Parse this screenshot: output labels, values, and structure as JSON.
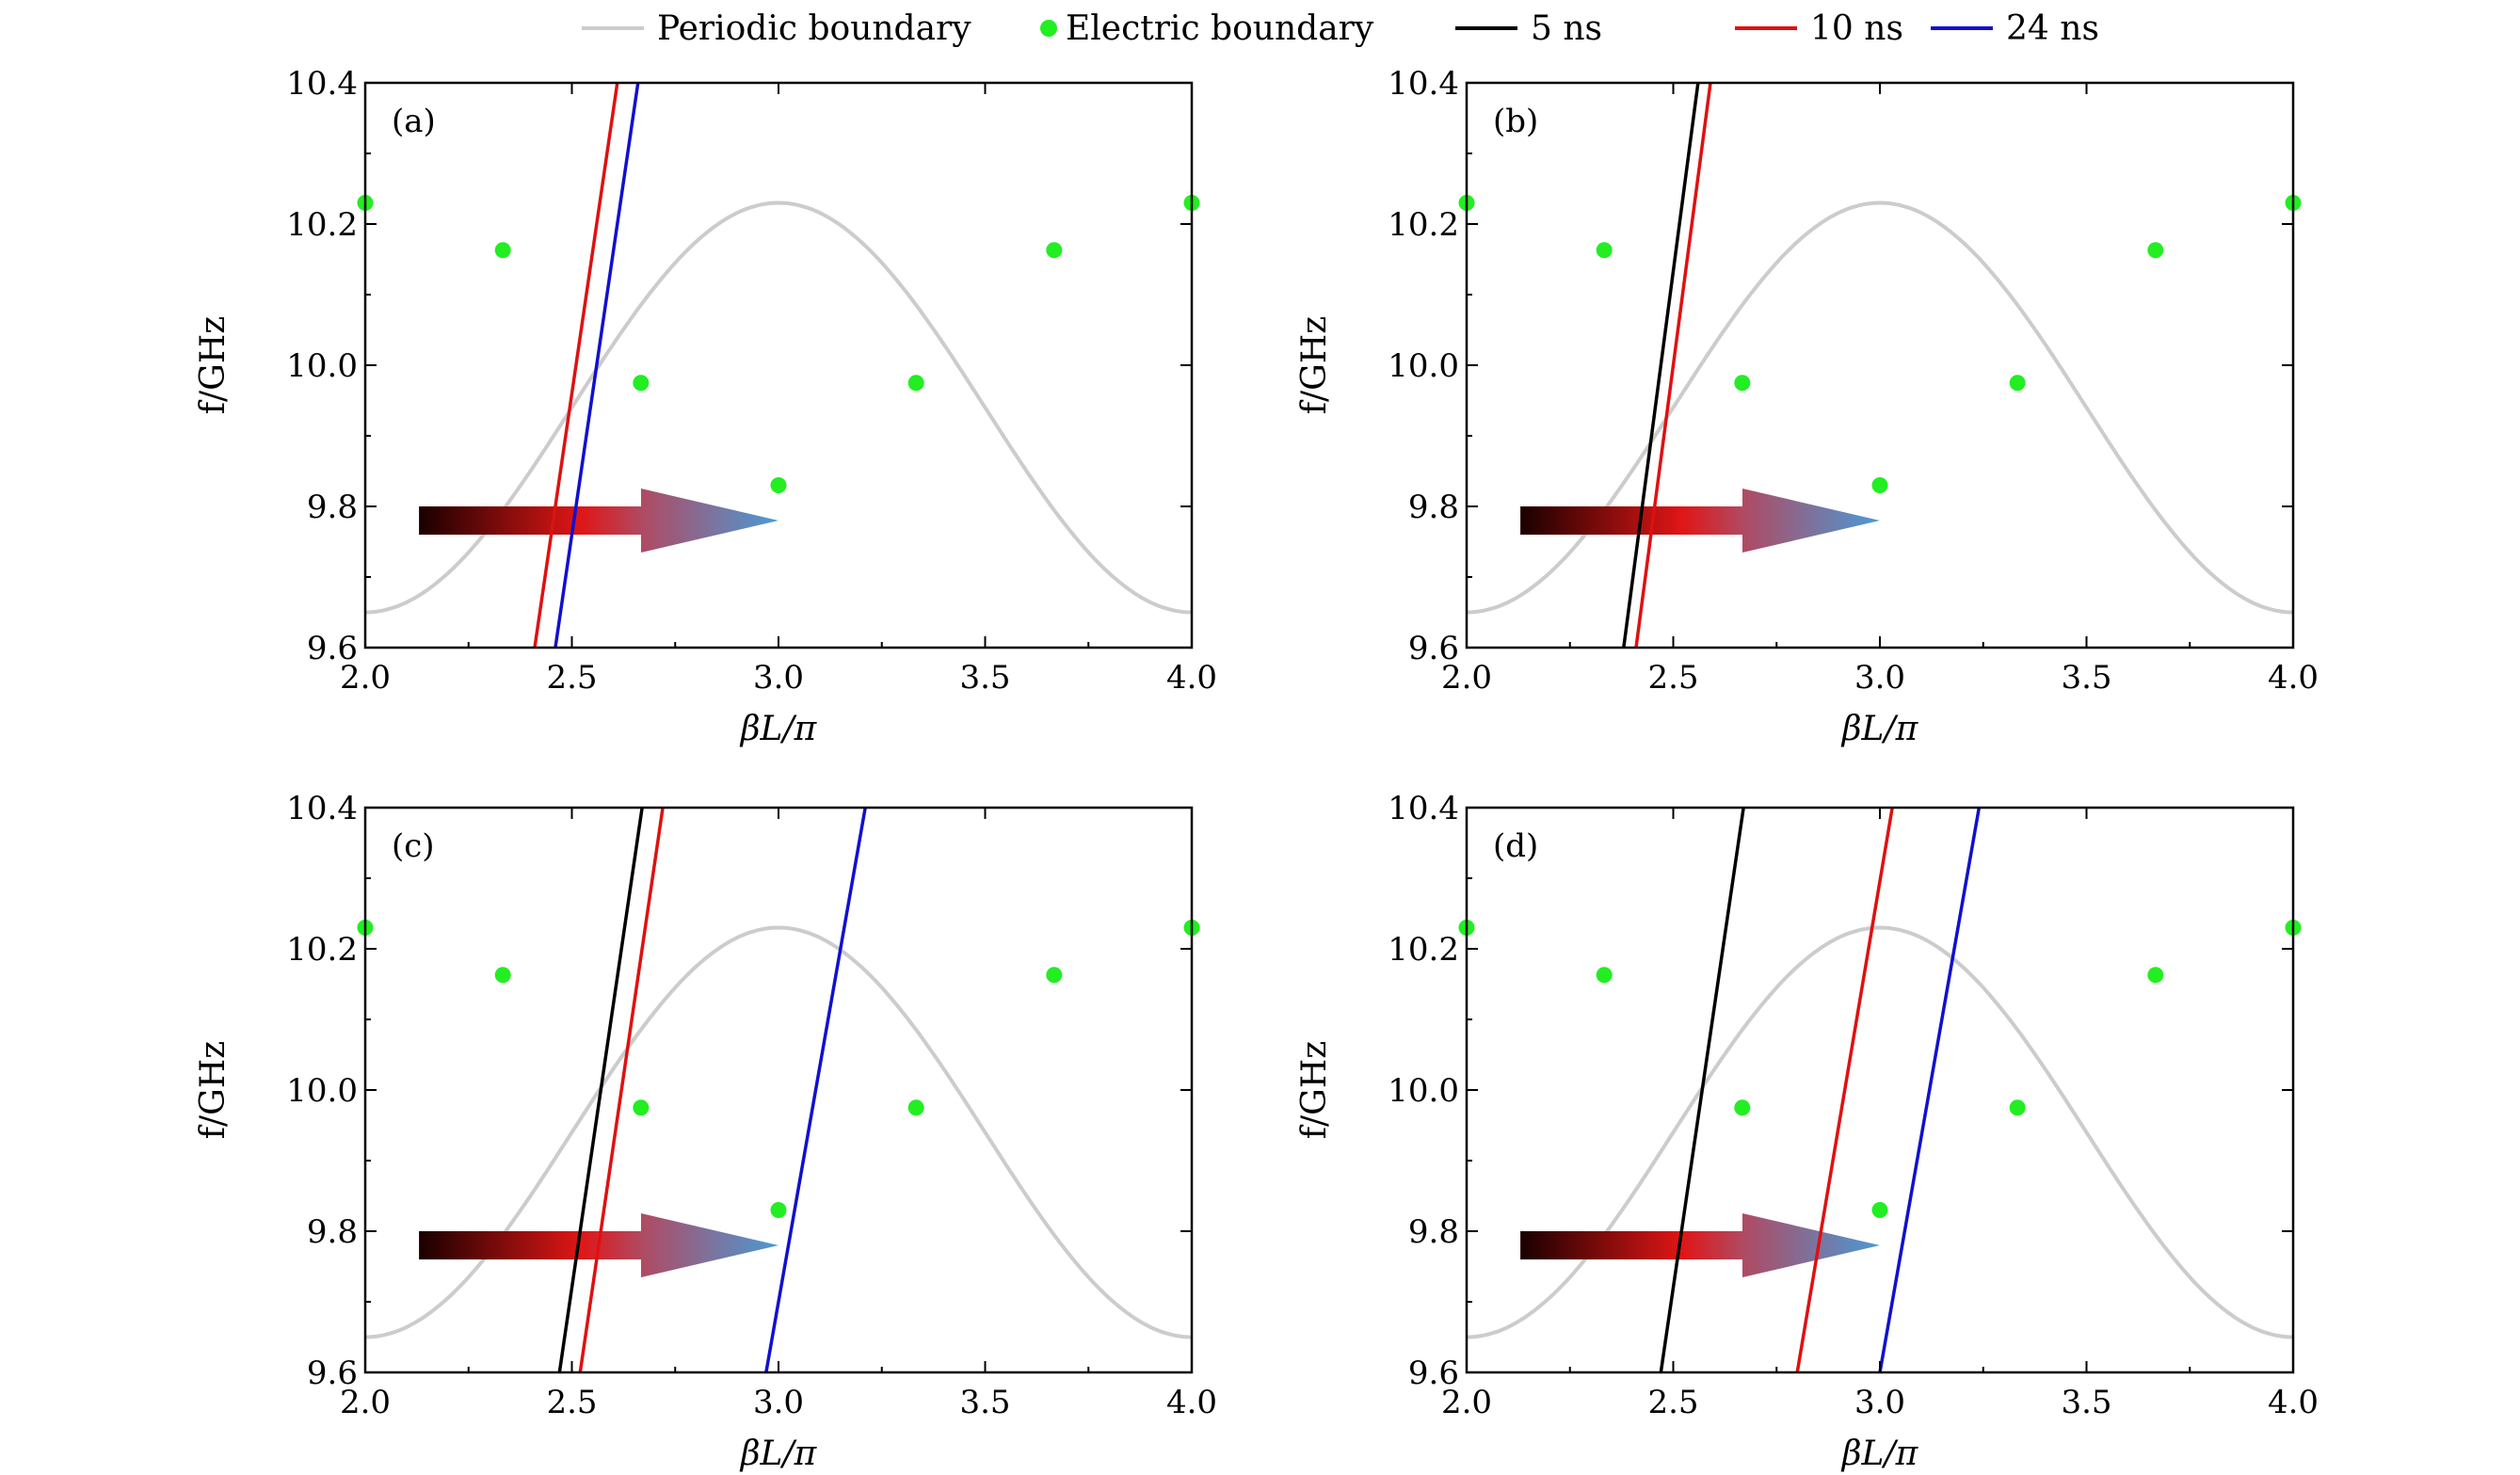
{
  "legend": [
    {
      "label": "Periodic boundary",
      "kind": "line",
      "color": "#cccccc"
    },
    {
      "label": "Electric boundary",
      "kind": "marker",
      "color": "#22ee22"
    },
    {
      "label": "5 ns",
      "kind": "line",
      "color": "#000000"
    },
    {
      "label": "10 ns",
      "kind": "line",
      "color": "#e01010"
    },
    {
      "label": "24 ns",
      "kind": "line",
      "color": "#1010d0"
    }
  ],
  "chart_data": [
    {
      "type": "line",
      "panel": "(a)",
      "xlabel": "βL/π",
      "ylabel": "f/GHz",
      "xlim": [
        2.0,
        4.0
      ],
      "ylim": [
        9.6,
        10.4
      ],
      "xticks": [
        "2.0",
        "2.5",
        "3.0",
        "3.5",
        "4.0"
      ],
      "yticks": [
        "9.6",
        "9.8",
        "10.0",
        "10.2",
        "10.4"
      ],
      "periodic_boundary": {
        "f_max": 10.23,
        "f_min": 9.65,
        "period": 2.0
      },
      "electric_boundary": {
        "x": [
          2.0,
          2.333,
          2.667,
          3.0,
          3.333,
          3.667,
          4.0
        ],
        "y": [
          10.23,
          10.163,
          9.975,
          9.83,
          9.975,
          10.163,
          10.23
        ]
      },
      "series": [
        {
          "name": "10 ns",
          "x": [
            2.41,
            2.61
          ],
          "y": [
            9.6,
            10.4
          ]
        },
        {
          "name": "24 ns",
          "x": [
            2.46,
            2.66
          ],
          "y": [
            9.6,
            10.4
          ]
        }
      ],
      "arrow": {
        "x_start": 2.13,
        "x_end": 3.0,
        "y": 9.78
      }
    },
    {
      "type": "line",
      "panel": "(b)",
      "xlabel": "βL/π",
      "ylabel": "f/GHz",
      "xlim": [
        2.0,
        4.0
      ],
      "ylim": [
        9.6,
        10.4
      ],
      "xticks": [
        "2.0",
        "2.5",
        "3.0",
        "3.5",
        "4.0"
      ],
      "yticks": [
        "9.6",
        "9.8",
        "10.0",
        "10.2",
        "10.4"
      ],
      "periodic_boundary": {
        "f_max": 10.23,
        "f_min": 9.65,
        "period": 2.0
      },
      "electric_boundary": {
        "x": [
          2.0,
          2.333,
          2.667,
          3.0,
          3.333,
          3.667,
          4.0
        ],
        "y": [
          10.23,
          10.163,
          9.975,
          9.83,
          9.975,
          10.163,
          10.23
        ]
      },
      "series": [
        {
          "name": "5 ns",
          "x": [
            2.38,
            2.56
          ],
          "y": [
            9.6,
            10.4
          ]
        },
        {
          "name": "10 ns",
          "x": [
            2.41,
            2.59
          ],
          "y": [
            9.6,
            10.4
          ]
        }
      ],
      "arrow": {
        "x_start": 2.13,
        "x_end": 3.0,
        "y": 9.78
      }
    },
    {
      "type": "line",
      "panel": "(c)",
      "xlabel": "βL/π",
      "ylabel": "f/GHz",
      "xlim": [
        2.0,
        4.0
      ],
      "ylim": [
        9.6,
        10.4
      ],
      "xticks": [
        "2.0",
        "2.5",
        "3.0",
        "3.5",
        "4.0"
      ],
      "yticks": [
        "9.6",
        "9.8",
        "10.0",
        "10.2",
        "10.4"
      ],
      "periodic_boundary": {
        "f_max": 10.23,
        "f_min": 9.65,
        "period": 2.0
      },
      "electric_boundary": {
        "x": [
          2.0,
          2.333,
          2.667,
          3.0,
          3.333,
          3.667,
          4.0
        ],
        "y": [
          10.23,
          10.163,
          9.975,
          9.83,
          9.975,
          10.163,
          10.23
        ]
      },
      "series": [
        {
          "name": "5 ns",
          "x": [
            2.47,
            2.67
          ],
          "y": [
            9.6,
            10.4
          ]
        },
        {
          "name": "10 ns",
          "x": [
            2.52,
            2.72
          ],
          "y": [
            9.6,
            10.4
          ]
        },
        {
          "name": "24 ns",
          "x": [
            2.97,
            3.21
          ],
          "y": [
            9.6,
            10.4
          ]
        }
      ],
      "arrow": {
        "x_start": 2.13,
        "x_end": 3.0,
        "y": 9.78
      }
    },
    {
      "type": "line",
      "panel": "(d)",
      "xlabel": "βL/π",
      "ylabel": "f/GHz",
      "xlim": [
        2.0,
        4.0
      ],
      "ylim": [
        9.6,
        10.4
      ],
      "xticks": [
        "2.0",
        "2.5",
        "3.0",
        "3.5",
        "4.0"
      ],
      "yticks": [
        "9.6",
        "9.8",
        "10.0",
        "10.2",
        "10.4"
      ],
      "periodic_boundary": {
        "f_max": 10.23,
        "f_min": 9.65,
        "period": 2.0
      },
      "electric_boundary": {
        "x": [
          2.0,
          2.333,
          2.667,
          3.0,
          3.333,
          3.667,
          4.0
        ],
        "y": [
          10.23,
          10.163,
          9.975,
          9.83,
          9.975,
          10.163,
          10.23
        ]
      },
      "series": [
        {
          "name": "5 ns",
          "x": [
            2.47,
            2.67
          ],
          "y": [
            9.6,
            10.4
          ]
        },
        {
          "name": "10 ns",
          "x": [
            2.8,
            3.03
          ],
          "y": [
            9.6,
            10.4
          ]
        },
        {
          "name": "24 ns",
          "x": [
            3.0,
            3.24
          ],
          "y": [
            9.6,
            10.4
          ]
        }
      ],
      "arrow": {
        "x_start": 2.13,
        "x_end": 3.0,
        "y": 9.78
      }
    }
  ]
}
